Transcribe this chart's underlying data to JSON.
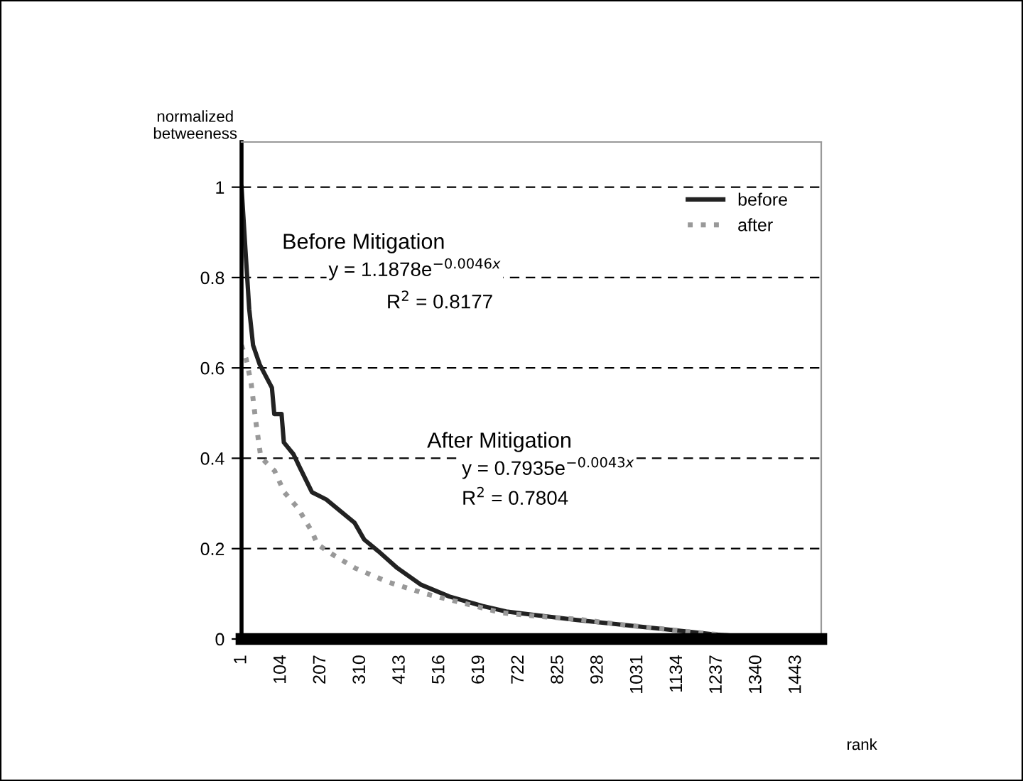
{
  "chart_data": {
    "type": "line",
    "xlabel": "rank",
    "ylabel": "normalized\nbetweeness",
    "xlim": [
      1,
      1508
    ],
    "xticks": [
      1,
      104,
      207,
      310,
      413,
      516,
      619,
      722,
      825,
      928,
      1031,
      1134,
      1237,
      1340,
      1443
    ],
    "ylim": [
      0,
      1.1
    ],
    "yticks": [
      0,
      {
        "value": 0.2,
        "label": "0.2"
      },
      {
        "value": 0.4,
        "label": "0.4"
      },
      {
        "value": 0.6,
        "label": "0.6"
      },
      {
        "value": 0.8,
        "label": "0.8"
      },
      1
    ],
    "grid": "y",
    "legend": "top right",
    "series": [
      {
        "name": "before",
        "color": "#222222",
        "line_style": "solid",
        "x": [
          1,
          12,
          21,
          31,
          48,
          80,
          86,
          105,
          111,
          136,
          154,
          184,
          221,
          258,
          295,
          320,
          357,
          406,
          468,
          541,
          627,
          689,
          775,
          873,
          996,
          1120,
          1230,
          1340,
          1450
        ],
        "values": [
          1.0,
          0.85,
          0.73,
          0.65,
          0.608,
          0.556,
          0.498,
          0.498,
          0.435,
          0.409,
          0.377,
          0.325,
          0.309,
          0.283,
          0.257,
          0.22,
          0.194,
          0.157,
          0.12,
          0.094,
          0.073,
          0.061,
          0.052,
          0.042,
          0.031,
          0.02,
          0.01,
          0.003,
          0.002
        ]
      },
      {
        "name": "after",
        "color": "#999999",
        "line_style": "dotted",
        "x": [
          1,
          13,
          26,
          38,
          50,
          56,
          87,
          112,
          149,
          185,
          198,
          234,
          296,
          382,
          480,
          579,
          677,
          775,
          874,
          997,
          1100,
          1200,
          1300,
          1400
        ],
        "values": [
          0.65,
          0.62,
          0.566,
          0.482,
          0.409,
          0.398,
          0.372,
          0.325,
          0.288,
          0.236,
          0.21,
          0.189,
          0.157,
          0.126,
          0.1,
          0.079,
          0.058,
          0.05,
          0.044,
          0.031,
          0.022,
          0.013,
          0.005,
          0.002
        ]
      }
    ],
    "annotations": [
      "Before Mitigation",
      "y = 1.1878e$^{−0.0046x}$",
      "R$^{2}$ = 0.8177",
      "After Mitigation",
      "y = 0.7935e$^{−0.0043x}$",
      "R$^{2}$ = 0.7804"
    ]
  }
}
